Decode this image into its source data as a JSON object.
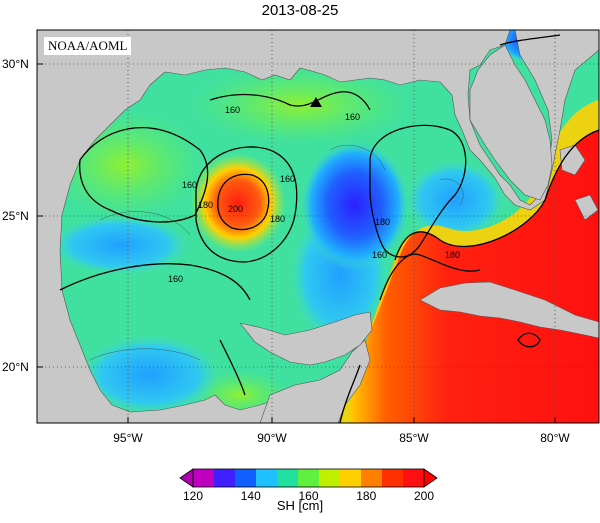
{
  "title": "2013-08-25",
  "credit": "NOAA/AOML",
  "axes": {
    "lat_ticks": [
      "30°N",
      "25°N",
      "20°N"
    ],
    "lon_ticks": [
      "95°W",
      "90°W",
      "85°W",
      "80°W"
    ]
  },
  "contour_labels": [
    "160",
    "160",
    "160",
    "160",
    "160",
    "160",
    "180",
    "180",
    "180",
    "180",
    "200"
  ],
  "colorbar": {
    "ticks": [
      "120",
      "140",
      "160",
      "180",
      "200"
    ],
    "label": "SH [cm]",
    "colors": [
      "#c000c0",
      "#4020ff",
      "#1060ff",
      "#20c0ff",
      "#20e0a0",
      "#60f040",
      "#c0f000",
      "#ffd000",
      "#ff8000",
      "#ff3000",
      "#ff1010"
    ]
  },
  "colors": {
    "land": "#c8c8c8",
    "ocean_base": "#40e0a0",
    "warm": "#ff2a10",
    "cool": "#1060ff"
  },
  "marker": "triangle-marker"
}
